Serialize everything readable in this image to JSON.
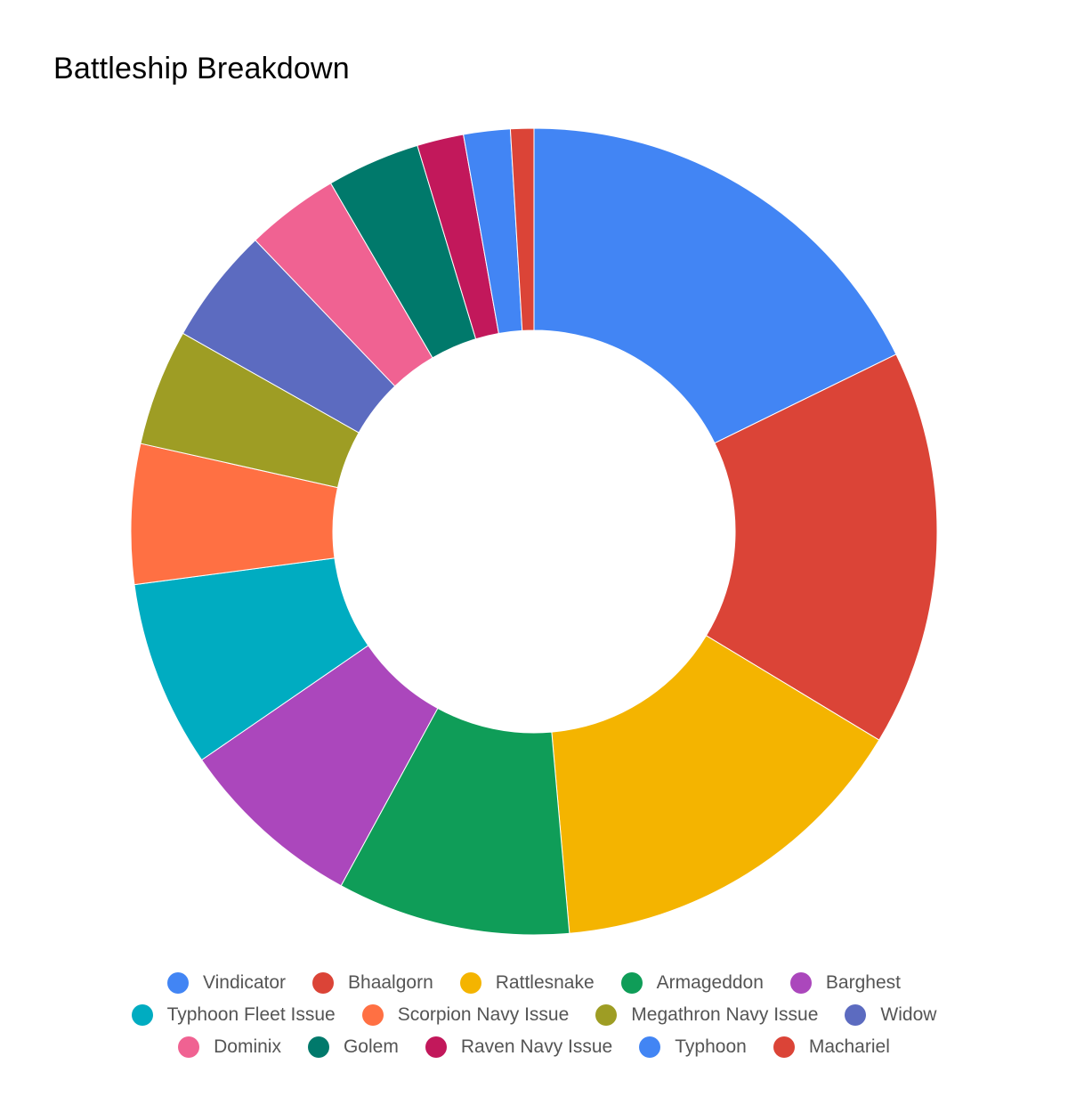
{
  "chart_data": {
    "type": "pie",
    "title": "Battleship Breakdown",
    "donut": true,
    "legend_position": "bottom",
    "series": [
      {
        "name": "Vindicator",
        "value": 19,
        "color": "#4285f4"
      },
      {
        "name": "Bhaalgorn",
        "value": 17,
        "color": "#db4437"
      },
      {
        "name": "Rattlesnake",
        "value": 16,
        "color": "#f4b400"
      },
      {
        "name": "Armageddon",
        "value": 10,
        "color": "#0f9d58"
      },
      {
        "name": "Barghest",
        "value": 8,
        "color": "#ab47bc"
      },
      {
        "name": "Typhoon Fleet Issue",
        "value": 8,
        "color": "#00acc1"
      },
      {
        "name": "Scorpion Navy Issue",
        "value": 6,
        "color": "#ff7043"
      },
      {
        "name": "Megathron Navy Issue",
        "value": 5,
        "color": "#9e9d24"
      },
      {
        "name": "Widow",
        "value": 5,
        "color": "#5c6bc0"
      },
      {
        "name": "Dominix",
        "value": 4,
        "color": "#f06292"
      },
      {
        "name": "Golem",
        "value": 4,
        "color": "#00796b"
      },
      {
        "name": "Raven Navy Issue",
        "value": 2,
        "color": "#c2185b"
      },
      {
        "name": "Typhoon",
        "value": 2,
        "color": "#4285f4"
      },
      {
        "name": "Machariel",
        "value": 1,
        "color": "#db4437"
      }
    ]
  }
}
